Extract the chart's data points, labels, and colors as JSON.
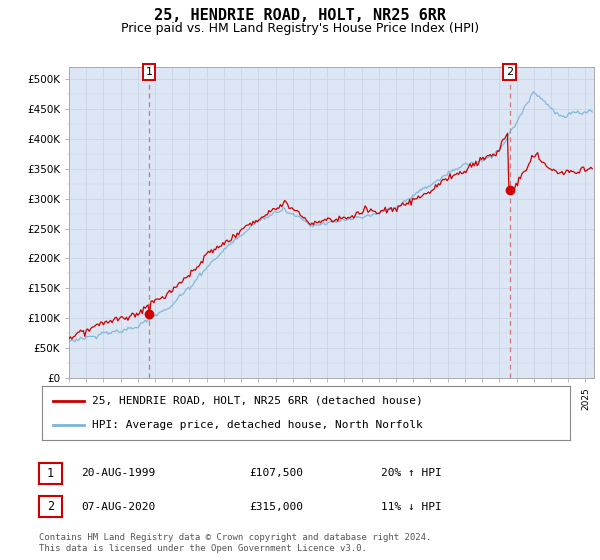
{
  "title": "25, HENDRIE ROAD, HOLT, NR25 6RR",
  "subtitle": "Price paid vs. HM Land Registry's House Price Index (HPI)",
  "ylabel_ticks": [
    "£0",
    "£50K",
    "£100K",
    "£150K",
    "£200K",
    "£250K",
    "£300K",
    "£350K",
    "£400K",
    "£450K",
    "£500K"
  ],
  "ylim": [
    0,
    520000
  ],
  "xlim_start": 1995.0,
  "xlim_end": 2025.5,
  "sale1_date": 1999.639,
  "sale1_price": 107500,
  "sale1_label": "1",
  "sale2_date": 2020.594,
  "sale2_price": 315000,
  "sale2_label": "2",
  "hpi_color": "#7ab4d8",
  "price_color": "#cc0000",
  "grid_color": "#c8d4e8",
  "bg_color": "#dde6f4",
  "dashed_color": "#cc6666",
  "legend_label_price": "25, HENDRIE ROAD, HOLT, NR25 6RR (detached house)",
  "legend_label_hpi": "HPI: Average price, detached house, North Norfolk",
  "table_row1": [
    "1",
    "20-AUG-1999",
    "£107,500",
    "20% ↑ HPI"
  ],
  "table_row2": [
    "2",
    "07-AUG-2020",
    "£315,000",
    "11% ↓ HPI"
  ],
  "footnote": "Contains HM Land Registry data © Crown copyright and database right 2024.\nThis data is licensed under the Open Government Licence v3.0.",
  "title_fontsize": 11,
  "subtitle_fontsize": 9,
  "axis_fontsize": 7.5,
  "legend_fontsize": 8,
  "table_fontsize": 8,
  "footnote_fontsize": 6.5
}
